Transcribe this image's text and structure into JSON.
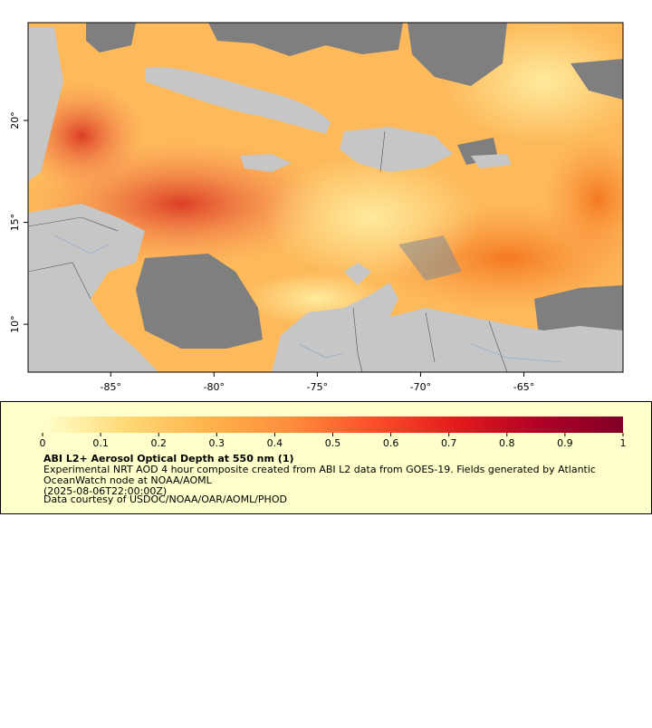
{
  "map": {
    "xlim": [
      -89,
      -60.2
    ],
    "ylim": [
      7.65,
      24.8
    ],
    "xticks": [
      {
        "value": -85,
        "label": "-85°"
      },
      {
        "value": -80,
        "label": "-80°"
      },
      {
        "value": -75,
        "label": "-75°"
      },
      {
        "value": -70,
        "label": "-70°"
      },
      {
        "value": -65,
        "label": "-65°"
      }
    ],
    "yticks": [
      {
        "value": 10,
        "label": "10°"
      },
      {
        "value": 15,
        "label": "15°"
      },
      {
        "value": 20,
        "label": "20°"
      }
    ]
  },
  "colorbar": {
    "lim": [
      0,
      1
    ],
    "ticks": [
      0,
      0.1,
      0.2,
      0.3,
      0.4,
      0.5,
      0.6,
      0.7,
      0.8,
      0.9,
      1
    ],
    "colors": [
      "#ffffcc",
      "#fed976",
      "#feb24c",
      "#fd8d3c",
      "#fc4e2a",
      "#e31a1c",
      "#b10026",
      "#800026"
    ]
  },
  "legend": {
    "title": "ABI L2+ Aerosol Optical Depth at 550 nm (1)",
    "lines": [
      "Experimental NRT AOD 4 hour composite created from ABI L2 data from GOES-19. Fields generated by Atlantic",
      "OceanWatch node at NOAA/AOML",
      "(2025-08-06T22:00:00Z)",
      "Data courtesy of USDOC/NOAA/OAR/AOML/PHOD"
    ]
  }
}
